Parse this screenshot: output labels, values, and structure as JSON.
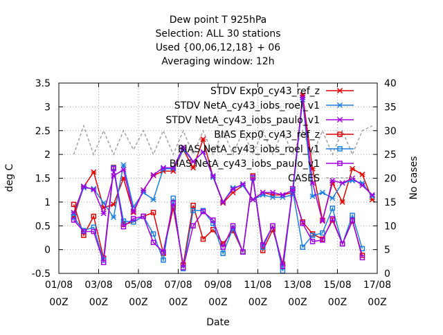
{
  "title_lines": [
    "Dew point T 925hPa",
    "Selection: ALL      30 stations",
    "Used {00,06,12,18} + 06",
    "Averaging window: 12h"
  ],
  "chart_data": {
    "type": "line",
    "xlabel": "Date",
    "ylabel": "deg C",
    "y2label": "No cases",
    "xlim": [
      0,
      16
    ],
    "ylim": [
      -0.5,
      3.5
    ],
    "y2lim": [
      0,
      40
    ],
    "x_ticks": [
      {
        "x": 0,
        "line1": "01/08",
        "line2": "00Z"
      },
      {
        "x": 2,
        "line1": "03/08",
        "line2": "00Z"
      },
      {
        "x": 4,
        "line1": "05/08",
        "line2": "00Z"
      },
      {
        "x": 6,
        "line1": "07/08",
        "line2": "00Z"
      },
      {
        "x": 8,
        "line1": "09/08",
        "line2": "00Z"
      },
      {
        "x": 10,
        "line1": "11/08",
        "line2": "00Z"
      },
      {
        "x": 12,
        "line1": "13/08",
        "line2": "00Z"
      },
      {
        "x": 14,
        "line1": "15/08",
        "line2": "00Z"
      },
      {
        "x": 16,
        "line1": "17/08",
        "line2": "00Z"
      }
    ],
    "y_ticks": [
      "-0.5",
      "0",
      "0.5",
      "1",
      "1.5",
      "2",
      "2.5",
      "3",
      "3.5"
    ],
    "y2_ticks": [
      "0",
      "5",
      "10",
      "15",
      "20",
      "25",
      "30",
      "35",
      "40"
    ],
    "grid": true,
    "legend_position": "top-right",
    "x": [
      0.75,
      1.25,
      1.75,
      2.25,
      2.75,
      3.25,
      3.75,
      4.25,
      4.75,
      5.25,
      5.75,
      6.25,
      6.75,
      7.25,
      7.75,
      8.25,
      8.75,
      9.25,
      9.75,
      10.25,
      10.75,
      11.25,
      11.75,
      12.25,
      12.75,
      13.25,
      13.75,
      14.25,
      14.75,
      15.25,
      15.75
    ],
    "series": [
      {
        "name": "STDV Exp0_cy43_ref_z",
        "color": "#e00000",
        "marker": "x",
        "values": [
          0.68,
          1.32,
          1.63,
          0.88,
          0.95,
          1.5,
          0.78,
          1.25,
          1.56,
          1.65,
          1.65,
          2.1,
          1.72,
          2.32,
          1.52,
          0.98,
          1.2,
          1.35,
          1.05,
          1.2,
          1.15,
          1.15,
          1.2,
          3.25,
          1.7,
          0.62,
          1.4,
          1.0,
          1.7,
          1.58,
          1.05
        ]
      },
      {
        "name": "STDV NetA_cy43_iobs_roel_v1",
        "color": "#1a7fe0",
        "marker": "x",
        "values": [
          0.75,
          1.3,
          1.28,
          0.98,
          0.68,
          1.78,
          0.9,
          1.2,
          1.05,
          1.7,
          1.7,
          2.1,
          1.85,
          2.05,
          1.52,
          1.0,
          1.3,
          1.35,
          1.05,
          1.15,
          1.1,
          1.1,
          1.15,
          3.15,
          1.12,
          1.2,
          1.08,
          1.4,
          1.45,
          1.4,
          1.12
        ]
      },
      {
        "name": "STDV NetA_cy43_iobs_paulo_v1",
        "color": "#a000e0",
        "marker": "x",
        "values": [
          0.78,
          1.33,
          1.26,
          0.76,
          1.55,
          1.68,
          0.8,
          1.25,
          1.57,
          1.72,
          1.72,
          2.15,
          1.85,
          2.05,
          1.55,
          1.0,
          1.27,
          1.38,
          1.05,
          1.2,
          1.2,
          1.15,
          1.25,
          3.2,
          1.4,
          0.6,
          1.45,
          1.4,
          1.5,
          1.35,
          1.15
        ]
      },
      {
        "name": "BIAS Exp0_cy43_ref_z",
        "color": "#e00000",
        "marker": "square",
        "values": [
          0.95,
          0.3,
          0.7,
          -0.18,
          1.73,
          0.53,
          0.58,
          0.7,
          0.78,
          -0.08,
          0.88,
          -0.32,
          0.93,
          0.22,
          0.42,
          0.12,
          0.4,
          -0.05,
          1.55,
          -0.02,
          0.42,
          -0.3,
          1.25,
          0.58,
          0.33,
          0.22,
          0.62,
          0.12,
          0.6,
          -0.12,
          null
        ]
      },
      {
        "name": "BIAS NetA_cy43_iobs_roel_v1",
        "color": "#1a7fe0",
        "marker": "square",
        "values": [
          0.68,
          0.4,
          0.47,
          -0.22,
          1.72,
          0.6,
          0.58,
          0.7,
          0.33,
          -0.22,
          1.08,
          -0.4,
          0.82,
          0.82,
          0.55,
          -0.08,
          0.45,
          -0.05,
          1.5,
          0.05,
          0.5,
          -0.45,
          1.25,
          0.05,
          0.3,
          0.35,
          0.87,
          0.12,
          0.72,
          0.02,
          null
        ]
      },
      {
        "name": "BIAS NetA_cy43_iobs_paulo_v1",
        "color": "#a000e0",
        "marker": "square",
        "values": [
          0.62,
          0.38,
          0.38,
          -0.27,
          1.7,
          0.48,
          0.65,
          0.7,
          0.15,
          -0.05,
          0.98,
          -0.38,
          0.5,
          0.8,
          0.62,
          0.05,
          0.5,
          -0.05,
          1.52,
          0.1,
          0.5,
          -0.35,
          1.28,
          0.55,
          0.17,
          0.2,
          0.65,
          0.12,
          0.62,
          -0.17,
          null
        ]
      }
    ],
    "cases": {
      "name": "CASES",
      "color": "#a0a0a0",
      "axis": "y2",
      "x": [
        0.75,
        1.25,
        1.75,
        2.25,
        2.75,
        3.25,
        3.75,
        4.25,
        4.75,
        5.25,
        5.75,
        6.25,
        6.75,
        7.25,
        7.75,
        8.25,
        8.75,
        9.25,
        9.75,
        10.25,
        10.75,
        11.25,
        11.75,
        12.25,
        12.75,
        13.25,
        13.75,
        14.25,
        14.75,
        15.25,
        15.75
      ],
      "values": [
        25,
        31,
        25,
        30,
        25,
        30,
        26,
        30,
        25,
        30,
        25,
        30,
        25,
        30,
        25,
        30,
        25,
        30,
        25,
        30,
        25,
        30,
        25,
        30,
        25,
        30,
        25,
        30,
        25,
        30,
        31
      ]
    }
  }
}
